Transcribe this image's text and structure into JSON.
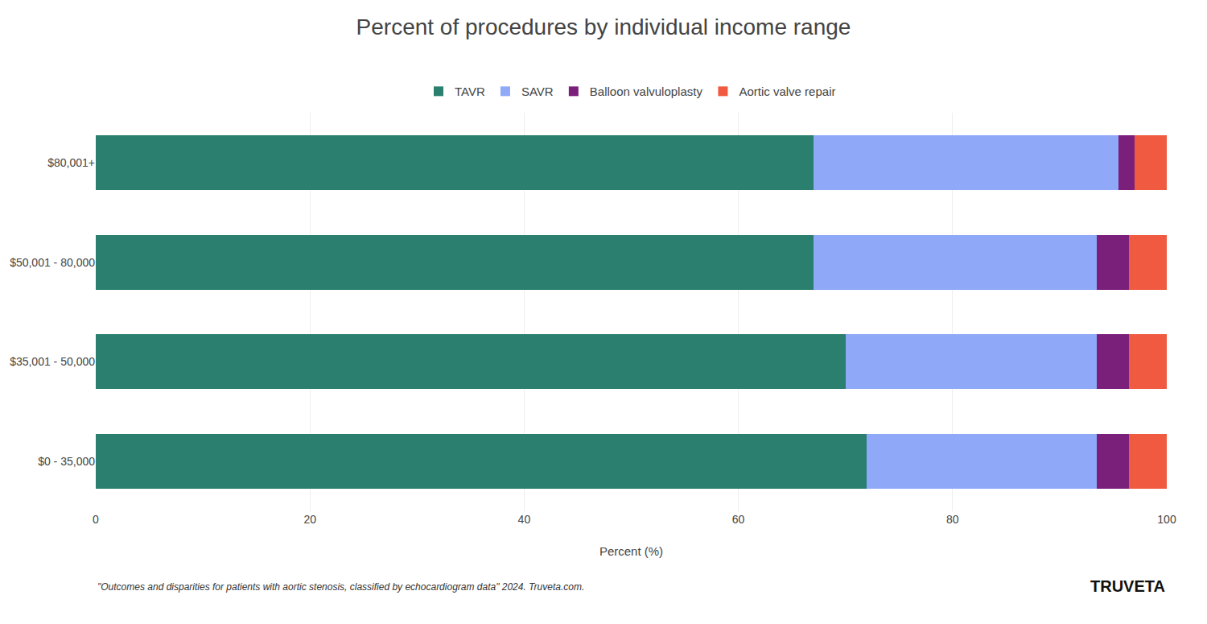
{
  "chart_data": {
    "type": "bar",
    "orientation": "horizontal",
    "stacked": true,
    "title": "Percent of procedures by individual income range",
    "categories": [
      "$80,001+",
      "$50,001 - 80,000",
      "$35,001 - 50,000",
      "$0 - 35,000"
    ],
    "series": [
      {
        "name": "TAVR",
        "color": "#2a7f6f",
        "values": [
          67.0,
          67.0,
          70.0,
          72.0
        ]
      },
      {
        "name": "SAVR",
        "color": "#8fa8f8",
        "values": [
          28.5,
          26.5,
          23.5,
          21.5
        ]
      },
      {
        "name": "Balloon valvuloplasty",
        "color": "#7a1f7a",
        "values": [
          1.5,
          3.0,
          3.0,
          3.0
        ]
      },
      {
        "name": "Aortic valve repair",
        "color": "#f05a40",
        "values": [
          3.0,
          3.5,
          3.5,
          3.5
        ]
      }
    ],
    "xlabel": "Percent (%)",
    "xlim": [
      0,
      100
    ],
    "xticks": [
      0,
      20,
      40,
      60,
      80,
      100
    ],
    "grid": true,
    "legend": "top",
    "annotations": [
      "\"Outcomes and disparities for patients with aortic stenosis, classified by echocardiogram data\" 2024. Truveta.com.",
      "TRUVETA"
    ]
  }
}
